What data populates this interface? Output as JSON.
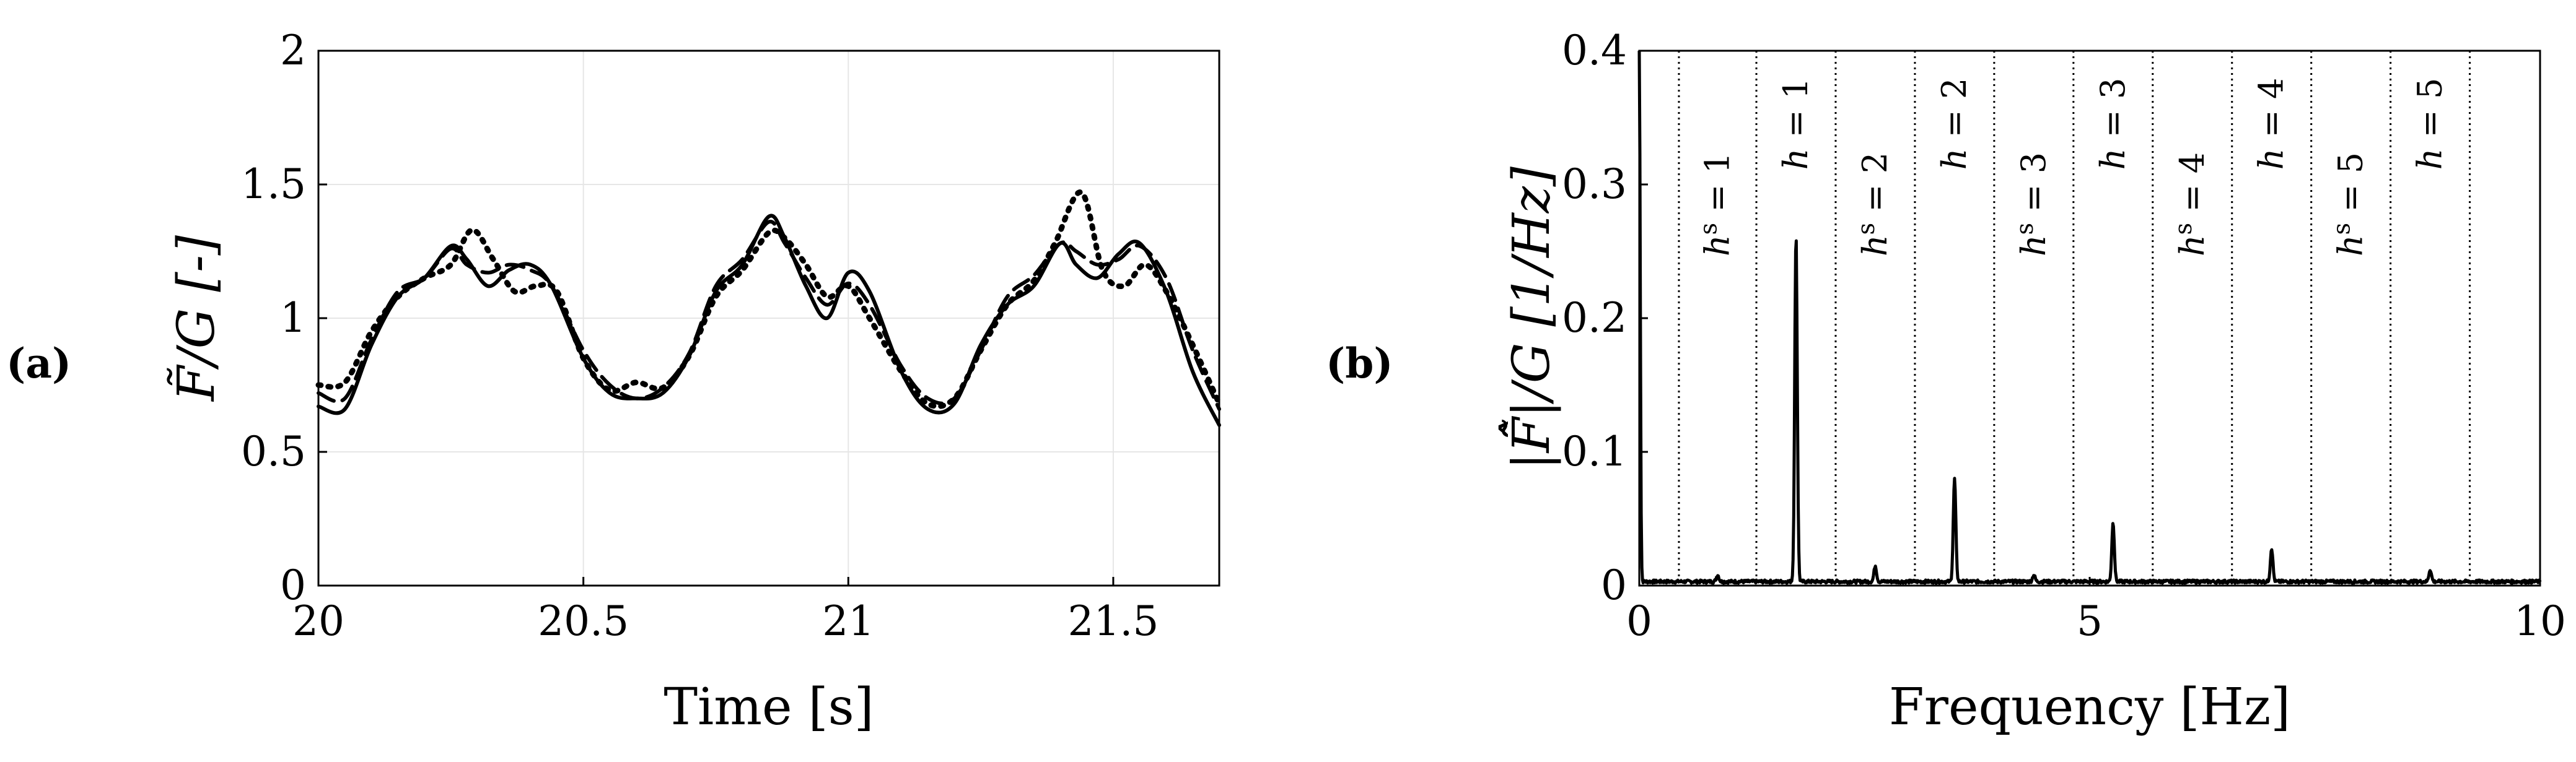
{
  "chart_data": [
    {
      "panel": "(a)",
      "type": "line",
      "xlabel": "Time [s]",
      "ylabel": "F̃/G [-]",
      "xlim": [
        20,
        21.7
      ],
      "ylim": [
        0,
        2
      ],
      "xticks": [
        "20",
        "20.5",
        "21",
        "21.5"
      ],
      "xtick_values": [
        20,
        20.5,
        21,
        21.5
      ],
      "yticks": [
        "0",
        "0.5",
        "1",
        "1.5",
        "2"
      ],
      "ytick_values": [
        0,
        0.5,
        1,
        1.5,
        2
      ],
      "grid": true,
      "series": [
        {
          "style": "solid",
          "x": [
            20.0,
            20.05,
            20.1,
            20.15,
            20.2,
            20.25,
            20.28,
            20.32,
            20.36,
            20.4,
            20.44,
            20.5,
            20.55,
            20.6,
            20.65,
            20.7,
            20.75,
            20.8,
            20.85,
            20.88,
            20.92,
            20.96,
            21.0,
            21.04,
            21.1,
            21.15,
            21.2,
            21.25,
            21.3,
            21.35,
            21.4,
            21.43,
            21.47,
            21.51,
            21.55,
            21.6,
            21.65,
            21.7
          ],
          "y": [
            0.67,
            0.66,
            0.9,
            1.08,
            1.15,
            1.27,
            1.22,
            1.12,
            1.18,
            1.2,
            1.12,
            0.85,
            0.72,
            0.7,
            0.72,
            0.86,
            1.1,
            1.2,
            1.38,
            1.3,
            1.12,
            1.0,
            1.17,
            1.1,
            0.8,
            0.66,
            0.68,
            0.9,
            1.05,
            1.12,
            1.28,
            1.2,
            1.15,
            1.24,
            1.28,
            1.1,
            0.8,
            0.6
          ]
        },
        {
          "style": "dashed",
          "x": [
            20.0,
            20.05,
            20.1,
            20.15,
            20.2,
            20.25,
            20.28,
            20.32,
            20.36,
            20.4,
            20.44,
            20.5,
            20.55,
            20.6,
            20.65,
            20.7,
            20.75,
            20.8,
            20.85,
            20.88,
            20.92,
            20.96,
            21.0,
            21.04,
            21.1,
            21.15,
            21.2,
            21.25,
            21.3,
            21.35,
            21.4,
            21.43,
            21.47,
            21.51,
            21.55,
            21.6,
            21.65,
            21.7
          ],
          "y": [
            0.72,
            0.7,
            0.92,
            1.1,
            1.15,
            1.26,
            1.2,
            1.17,
            1.2,
            1.18,
            1.12,
            0.88,
            0.75,
            0.7,
            0.74,
            0.87,
            1.12,
            1.22,
            1.36,
            1.28,
            1.15,
            1.05,
            1.13,
            1.05,
            0.82,
            0.7,
            0.7,
            0.88,
            1.08,
            1.16,
            1.28,
            1.25,
            1.2,
            1.22,
            1.27,
            1.15,
            0.88,
            0.66
          ]
        },
        {
          "style": "dotted",
          "x": [
            20.0,
            20.05,
            20.1,
            20.15,
            20.2,
            20.25,
            20.29,
            20.33,
            20.37,
            20.41,
            20.45,
            20.5,
            20.55,
            20.6,
            20.65,
            20.7,
            20.75,
            20.8,
            20.85,
            20.88,
            20.92,
            20.96,
            21.0,
            21.04,
            21.1,
            21.15,
            21.2,
            21.25,
            21.3,
            21.35,
            21.39,
            21.44,
            21.48,
            21.52,
            21.56,
            21.6,
            21.65,
            21.7
          ],
          "y": [
            0.75,
            0.76,
            0.95,
            1.08,
            1.15,
            1.2,
            1.33,
            1.22,
            1.1,
            1.12,
            1.1,
            0.85,
            0.73,
            0.76,
            0.74,
            0.86,
            1.08,
            1.18,
            1.32,
            1.3,
            1.2,
            1.08,
            1.12,
            1.0,
            0.8,
            0.68,
            0.7,
            0.88,
            1.05,
            1.14,
            1.28,
            1.47,
            1.18,
            1.12,
            1.2,
            1.1,
            0.9,
            0.68
          ]
        }
      ]
    },
    {
      "panel": "(b)",
      "type": "line",
      "xlabel": "Frequency [Hz]",
      "ylabel": "|F̃̂|/G [1/Hz]",
      "xlim": [
        0,
        10
      ],
      "ylim": [
        0,
        0.4
      ],
      "xticks": [
        "0",
        "5",
        "10"
      ],
      "xtick_values": [
        0,
        5,
        10
      ],
      "yticks": [
        "0",
        "0.1",
        "0.2",
        "0.3",
        "0.4"
      ],
      "ytick_values": [
        0,
        0.1,
        0.2,
        0.3,
        0.4
      ],
      "grid": false,
      "separators": [
        0.44,
        1.3,
        2.18,
        3.06,
        3.94,
        4.82,
        5.7,
        6.58,
        7.46,
        8.34,
        9.22
      ],
      "band_labels": [
        {
          "base": "h",
          "sup": "s",
          "text": " = 1",
          "x": 0.87
        },
        {
          "base": "h",
          "sup": "",
          "text": " = 1",
          "x": 1.74
        },
        {
          "base": "h",
          "sup": "s",
          "text": " = 2",
          "x": 2.62
        },
        {
          "base": "h",
          "sup": "",
          "text": " = 2",
          "x": 3.5
        },
        {
          "base": "h",
          "sup": "s",
          "text": " = 3",
          "x": 4.38
        },
        {
          "base": "h",
          "sup": "",
          "text": " = 3",
          "x": 5.26
        },
        {
          "base": "h",
          "sup": "s",
          "text": " = 4",
          "x": 6.14
        },
        {
          "base": "h",
          "sup": "",
          "text": " = 4",
          "x": 7.02
        },
        {
          "base": "h",
          "sup": "s",
          "text": " = 5",
          "x": 7.9
        },
        {
          "base": "h",
          "sup": "",
          "text": " = 5",
          "x": 8.78
        }
      ],
      "peaks": [
        {
          "x": 0.0,
          "y": 0.4
        },
        {
          "x": 0.87,
          "y": 0.005
        },
        {
          "x": 1.74,
          "y": 0.26
        },
        {
          "x": 2.62,
          "y": 0.012
        },
        {
          "x": 3.5,
          "y": 0.077
        },
        {
          "x": 4.38,
          "y": 0.005
        },
        {
          "x": 5.26,
          "y": 0.044
        },
        {
          "x": 7.02,
          "y": 0.025
        },
        {
          "x": 8.78,
          "y": 0.009
        }
      ],
      "baseline": 0.003
    }
  ]
}
